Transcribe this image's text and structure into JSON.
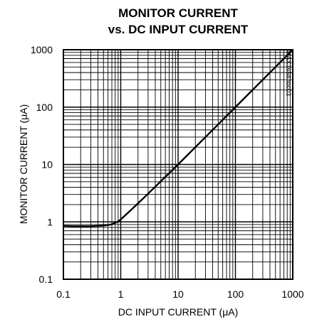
{
  "chart_data": {
    "type": "line",
    "title_line1": "MONITOR CURRENT",
    "title_line2": "vs. DC INPUT CURRENT",
    "xlabel": "DC INPUT CURRENT (μA)",
    "ylabel": "MONITOR CURRENT (μA)",
    "figure_code": "MAX3658 toc03",
    "x_scale": "log",
    "y_scale": "log",
    "xlim": [
      0.1,
      1000
    ],
    "ylim": [
      0.1,
      1000
    ],
    "grid": true,
    "x_ticks": [
      "0.1",
      "1",
      "10",
      "100",
      "1000"
    ],
    "y_ticks": [
      "1000",
      "100",
      "10",
      "1",
      "0.1"
    ],
    "series": [
      {
        "x": [
          0.1,
          0.15,
          0.2,
          0.3,
          0.4,
          0.5,
          0.6,
          0.7,
          0.8,
          0.9,
          1,
          1.5,
          2,
          3,
          5,
          10,
          20,
          50,
          100,
          200,
          500,
          1000
        ],
        "y": [
          0.85,
          0.84,
          0.84,
          0.84,
          0.85,
          0.86,
          0.88,
          0.91,
          0.96,
          1.02,
          1.1,
          1.6,
          2.1,
          3.1,
          5.1,
          10,
          20,
          50,
          100,
          200,
          500,
          1000
        ]
      }
    ]
  }
}
